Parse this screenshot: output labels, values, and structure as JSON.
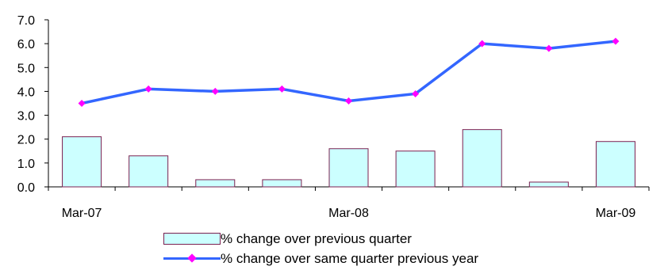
{
  "chart_data": {
    "type": "bar+line",
    "x": [
      "Mar-07",
      "",
      "",
      "",
      "Mar-08",
      "",
      "",
      "",
      "Mar-09"
    ],
    "x_tick_labels": [
      "Mar-07",
      "Mar-08",
      "Mar-09"
    ],
    "ylim": [
      0,
      7
    ],
    "y_ticks": [
      "0.0",
      "1.0",
      "2.0",
      "3.0",
      "4.0",
      "5.0",
      "6.0",
      "7.0"
    ],
    "grid": false,
    "legend_position": "bottom",
    "series": [
      {
        "name": "% change over previous quarter",
        "type": "bar",
        "values": [
          2.1,
          1.3,
          0.3,
          0.3,
          1.6,
          1.5,
          2.4,
          0.2,
          1.9
        ],
        "color": "#ccffff",
        "border": "#7b2050"
      },
      {
        "name": "% change over same quarter previous year",
        "type": "line",
        "values": [
          3.5,
          4.1,
          4.0,
          4.1,
          3.6,
          3.9,
          6.0,
          5.8,
          6.1
        ],
        "color": "#3366ff",
        "marker_color": "#ff00ff"
      }
    ]
  }
}
